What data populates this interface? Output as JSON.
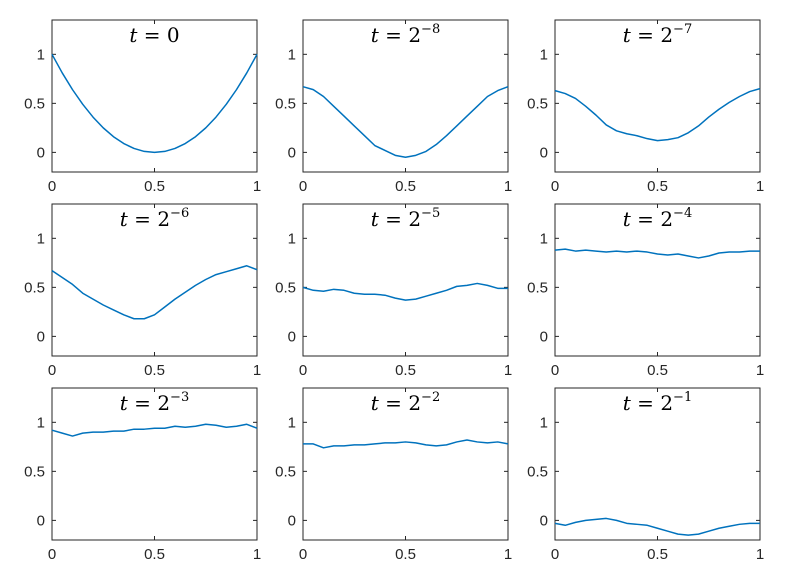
{
  "chart_data": [
    {
      "type": "line",
      "title": {
        "var": "t",
        "op": " = ",
        "base": "0",
        "exp": ""
      },
      "xlim": [
        0,
        1
      ],
      "ylim": [
        -0.2,
        1.35
      ],
      "xticks": [
        0,
        0.5,
        1
      ],
      "yticks": [
        0,
        0.5,
        1
      ],
      "xtick_labels": [
        "0",
        "0.5",
        "1"
      ],
      "ytick_labels": [
        "0",
        "0.5",
        "1"
      ],
      "series": [
        {
          "x": [
            0,
            0.05,
            0.1,
            0.15,
            0.2,
            0.25,
            0.3,
            0.35,
            0.4,
            0.45,
            0.5,
            0.55,
            0.6,
            0.65,
            0.7,
            0.75,
            0.8,
            0.85,
            0.9,
            0.95,
            1
          ],
          "y": [
            1,
            0.81,
            0.64,
            0.49,
            0.36,
            0.25,
            0.16,
            0.09,
            0.04,
            0.01,
            0,
            0.01,
            0.04,
            0.09,
            0.16,
            0.25,
            0.36,
            0.49,
            0.64,
            0.81,
            1
          ]
        }
      ]
    },
    {
      "type": "line",
      "title": {
        "var": "t",
        "op": " = ",
        "base": "2",
        "exp": "−8"
      },
      "xlim": [
        0,
        1
      ],
      "ylim": [
        -0.2,
        1.35
      ],
      "xticks": [
        0,
        0.5,
        1
      ],
      "yticks": [
        0,
        0.5,
        1
      ],
      "xtick_labels": [
        "0",
        "0.5",
        "1"
      ],
      "ytick_labels": [
        "0",
        "0.5",
        "1"
      ],
      "series": [
        {
          "x": [
            0,
            0.05,
            0.1,
            0.15,
            0.2,
            0.25,
            0.3,
            0.35,
            0.4,
            0.45,
            0.5,
            0.55,
            0.6,
            0.65,
            0.7,
            0.75,
            0.8,
            0.85,
            0.9,
            0.95,
            1
          ],
          "y": [
            0.67,
            0.64,
            0.57,
            0.47,
            0.37,
            0.27,
            0.17,
            0.07,
            0.02,
            -0.03,
            -0.05,
            -0.03,
            0.01,
            0.08,
            0.17,
            0.27,
            0.37,
            0.47,
            0.57,
            0.63,
            0.67
          ]
        }
      ]
    },
    {
      "type": "line",
      "title": {
        "var": "t",
        "op": " = ",
        "base": "2",
        "exp": "−7"
      },
      "xlim": [
        0,
        1
      ],
      "ylim": [
        -0.2,
        1.35
      ],
      "xticks": [
        0,
        0.5,
        1
      ],
      "yticks": [
        0,
        0.5,
        1
      ],
      "xtick_labels": [
        "0",
        "0.5",
        "1"
      ],
      "ytick_labels": [
        "0",
        "0.5",
        "1"
      ],
      "series": [
        {
          "x": [
            0,
            0.05,
            0.1,
            0.15,
            0.2,
            0.25,
            0.3,
            0.35,
            0.4,
            0.45,
            0.5,
            0.55,
            0.6,
            0.65,
            0.7,
            0.75,
            0.8,
            0.85,
            0.9,
            0.95,
            1
          ],
          "y": [
            0.63,
            0.6,
            0.55,
            0.47,
            0.38,
            0.28,
            0.22,
            0.19,
            0.17,
            0.14,
            0.12,
            0.13,
            0.15,
            0.2,
            0.27,
            0.36,
            0.44,
            0.51,
            0.57,
            0.62,
            0.65
          ]
        }
      ]
    },
    {
      "type": "line",
      "title": {
        "var": "t",
        "op": " = ",
        "base": "2",
        "exp": "−6"
      },
      "xlim": [
        0,
        1
      ],
      "ylim": [
        -0.2,
        1.35
      ],
      "xticks": [
        0,
        0.5,
        1
      ],
      "yticks": [
        0,
        0.5,
        1
      ],
      "xtick_labels": [
        "0",
        "0.5",
        "1"
      ],
      "ytick_labels": [
        "0",
        "0.5",
        "1"
      ],
      "series": [
        {
          "x": [
            0,
            0.05,
            0.1,
            0.15,
            0.2,
            0.25,
            0.3,
            0.35,
            0.4,
            0.45,
            0.5,
            0.55,
            0.6,
            0.65,
            0.7,
            0.75,
            0.8,
            0.85,
            0.9,
            0.95,
            1
          ],
          "y": [
            0.67,
            0.6,
            0.53,
            0.44,
            0.38,
            0.32,
            0.27,
            0.22,
            0.18,
            0.18,
            0.22,
            0.3,
            0.38,
            0.45,
            0.52,
            0.58,
            0.63,
            0.66,
            0.69,
            0.72,
            0.68
          ]
        }
      ]
    },
    {
      "type": "line",
      "title": {
        "var": "t",
        "op": " = ",
        "base": "2",
        "exp": "−5"
      },
      "xlim": [
        0,
        1
      ],
      "ylim": [
        -0.2,
        1.35
      ],
      "xticks": [
        0,
        0.5,
        1
      ],
      "yticks": [
        0,
        0.5,
        1
      ],
      "xtick_labels": [
        "0",
        "0.5",
        "1"
      ],
      "ytick_labels": [
        "0",
        "0.5",
        "1"
      ],
      "series": [
        {
          "x": [
            0,
            0.05,
            0.1,
            0.15,
            0.2,
            0.25,
            0.3,
            0.35,
            0.4,
            0.45,
            0.5,
            0.55,
            0.6,
            0.65,
            0.7,
            0.75,
            0.8,
            0.85,
            0.9,
            0.95,
            1
          ],
          "y": [
            0.5,
            0.47,
            0.46,
            0.48,
            0.47,
            0.44,
            0.43,
            0.43,
            0.42,
            0.39,
            0.37,
            0.38,
            0.41,
            0.44,
            0.47,
            0.51,
            0.52,
            0.54,
            0.52,
            0.49,
            0.49
          ]
        }
      ]
    },
    {
      "type": "line",
      "title": {
        "var": "t",
        "op": " = ",
        "base": "2",
        "exp": "−4"
      },
      "xlim": [
        0,
        1
      ],
      "ylim": [
        -0.2,
        1.35
      ],
      "xticks": [
        0,
        0.5,
        1
      ],
      "yticks": [
        0,
        0.5,
        1
      ],
      "xtick_labels": [
        "0",
        "0.5",
        "1"
      ],
      "ytick_labels": [
        "0",
        "0.5",
        "1"
      ],
      "series": [
        {
          "x": [
            0,
            0.05,
            0.1,
            0.15,
            0.2,
            0.25,
            0.3,
            0.35,
            0.4,
            0.45,
            0.5,
            0.55,
            0.6,
            0.65,
            0.7,
            0.75,
            0.8,
            0.85,
            0.9,
            0.95,
            1
          ],
          "y": [
            0.88,
            0.89,
            0.87,
            0.88,
            0.87,
            0.86,
            0.87,
            0.86,
            0.87,
            0.86,
            0.84,
            0.83,
            0.84,
            0.82,
            0.8,
            0.82,
            0.85,
            0.86,
            0.86,
            0.87,
            0.87
          ]
        }
      ]
    },
    {
      "type": "line",
      "title": {
        "var": "t",
        "op": " = ",
        "base": "2",
        "exp": "−3"
      },
      "xlim": [
        0,
        1
      ],
      "ylim": [
        -0.2,
        1.35
      ],
      "xticks": [
        0,
        0.5,
        1
      ],
      "yticks": [
        0,
        0.5,
        1
      ],
      "xtick_labels": [
        "0",
        "0.5",
        "1"
      ],
      "ytick_labels": [
        "0",
        "0.5",
        "1"
      ],
      "series": [
        {
          "x": [
            0,
            0.05,
            0.1,
            0.15,
            0.2,
            0.25,
            0.3,
            0.35,
            0.4,
            0.45,
            0.5,
            0.55,
            0.6,
            0.65,
            0.7,
            0.75,
            0.8,
            0.85,
            0.9,
            0.95,
            1
          ],
          "y": [
            0.92,
            0.89,
            0.86,
            0.89,
            0.9,
            0.9,
            0.91,
            0.91,
            0.93,
            0.93,
            0.94,
            0.94,
            0.96,
            0.95,
            0.96,
            0.98,
            0.97,
            0.95,
            0.96,
            0.98,
            0.94
          ]
        }
      ]
    },
    {
      "type": "line",
      "title": {
        "var": "t",
        "op": " = ",
        "base": "2",
        "exp": "−2"
      },
      "xlim": [
        0,
        1
      ],
      "ylim": [
        -0.2,
        1.35
      ],
      "xticks": [
        0,
        0.5,
        1
      ],
      "yticks": [
        0,
        0.5,
        1
      ],
      "xtick_labels": [
        "0",
        "0.5",
        "1"
      ],
      "ytick_labels": [
        "0",
        "0.5",
        "1"
      ],
      "series": [
        {
          "x": [
            0,
            0.05,
            0.1,
            0.15,
            0.2,
            0.25,
            0.3,
            0.35,
            0.4,
            0.45,
            0.5,
            0.55,
            0.6,
            0.65,
            0.7,
            0.75,
            0.8,
            0.85,
            0.9,
            0.95,
            1
          ],
          "y": [
            0.78,
            0.78,
            0.74,
            0.76,
            0.76,
            0.77,
            0.77,
            0.78,
            0.79,
            0.79,
            0.8,
            0.79,
            0.77,
            0.76,
            0.77,
            0.8,
            0.82,
            0.8,
            0.79,
            0.8,
            0.78
          ]
        }
      ]
    },
    {
      "type": "line",
      "title": {
        "var": "t",
        "op": " = ",
        "base": "2",
        "exp": "−1"
      },
      "xlim": [
        0,
        1
      ],
      "ylim": [
        -0.2,
        1.35
      ],
      "xticks": [
        0,
        0.5,
        1
      ],
      "yticks": [
        0,
        0.5,
        1
      ],
      "xtick_labels": [
        "0",
        "0.5",
        "1"
      ],
      "ytick_labels": [
        "0",
        "0.5",
        "1"
      ],
      "series": [
        {
          "x": [
            0,
            0.05,
            0.1,
            0.15,
            0.2,
            0.25,
            0.3,
            0.35,
            0.4,
            0.45,
            0.5,
            0.55,
            0.6,
            0.65,
            0.7,
            0.75,
            0.8,
            0.85,
            0.9,
            0.95,
            1
          ],
          "y": [
            -0.03,
            -0.05,
            -0.02,
            0,
            0.01,
            0.02,
            0,
            -0.03,
            -0.04,
            -0.05,
            -0.08,
            -0.11,
            -0.14,
            -0.15,
            -0.14,
            -0.11,
            -0.08,
            -0.06,
            -0.04,
            -0.03,
            -0.03
          ]
        }
      ]
    }
  ]
}
